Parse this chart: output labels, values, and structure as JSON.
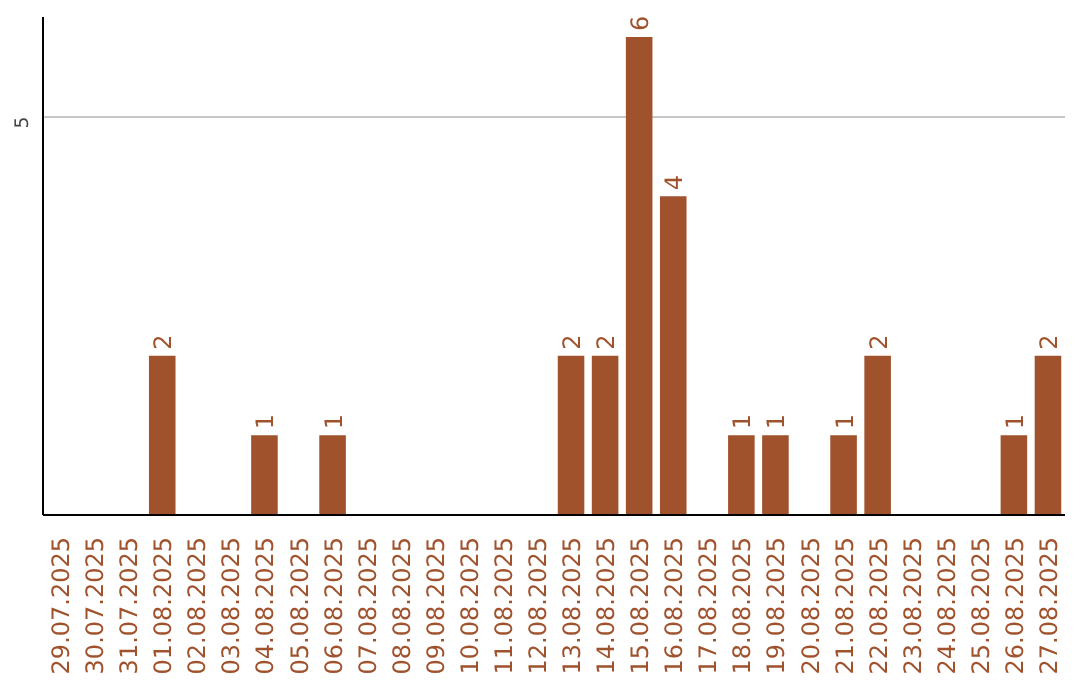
{
  "chart_data": {
    "type": "bar",
    "categories": [
      "29.07.2025",
      "30.07.2025",
      "31.07.2025",
      "01.08.2025",
      "02.08.2025",
      "03.08.2025",
      "04.08.2025",
      "05.08.2025",
      "06.08.2025",
      "07.08.2025",
      "08.08.2025",
      "09.08.2025",
      "10.08.2025",
      "11.08.2025",
      "12.08.2025",
      "13.08.2025",
      "14.08.2025",
      "15.08.2025",
      "16.08.2025",
      "17.08.2025",
      "18.08.2025",
      "19.08.2025",
      "20.08.2025",
      "21.08.2025",
      "22.08.2025",
      "23.08.2025",
      "24.08.2025",
      "25.08.2025",
      "26.08.2025",
      "27.08.2025"
    ],
    "values": [
      0,
      0,
      0,
      2,
      0,
      0,
      1,
      0,
      1,
      0,
      0,
      0,
      0,
      0,
      0,
      2,
      2,
      6,
      4,
      0,
      1,
      1,
      0,
      1,
      2,
      0,
      0,
      0,
      1,
      2
    ],
    "value_labels": [
      null,
      null,
      null,
      "2",
      null,
      null,
      "1",
      null,
      "1",
      null,
      null,
      null,
      null,
      null,
      null,
      "2",
      "2",
      "6",
      "4",
      null,
      "1",
      "1",
      null,
      "1",
      "2",
      null,
      null,
      null,
      "1",
      "2"
    ],
    "color": "#a0522d",
    "ylim": [
      0,
      6.25
    ],
    "yticks": [
      5
    ],
    "grid": "y"
  }
}
